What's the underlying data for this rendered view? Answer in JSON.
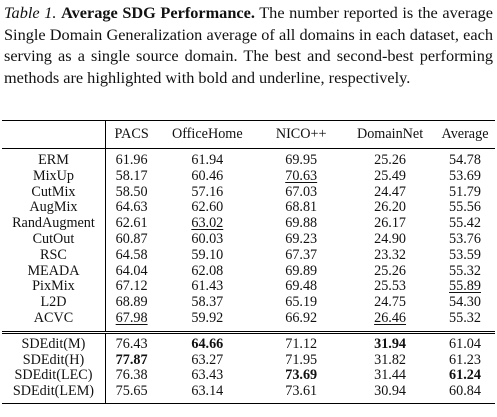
{
  "caption": {
    "label": "Table 1.",
    "title": "Average SDG Performance.",
    "text": "The number reported is the average Single Domain Generalization average of all domains in each dataset, each serving as a single source domain. The best and second-best performing methods are highlighted with bold and underline, respectively."
  },
  "table": {
    "columns": [
      "",
      "PACS",
      "OfficeHome",
      "NICO++",
      "DomainNet",
      "Average"
    ],
    "groups": [
      {
        "id": "baselines",
        "rows": [
          {
            "method": "ERM",
            "cells": [
              {
                "v": "61.96"
              },
              {
                "v": "61.94"
              },
              {
                "v": "69.95"
              },
              {
                "v": "25.26"
              },
              {
                "v": "54.78"
              }
            ]
          },
          {
            "method": "MixUp",
            "cells": [
              {
                "v": "58.17"
              },
              {
                "v": "60.46"
              },
              {
                "v": "70.63",
                "s": "u"
              },
              {
                "v": "25.49"
              },
              {
                "v": "53.69"
              }
            ]
          },
          {
            "method": "CutMix",
            "cells": [
              {
                "v": "58.50"
              },
              {
                "v": "57.16"
              },
              {
                "v": "67.03"
              },
              {
                "v": "24.47"
              },
              {
                "v": "51.79"
              }
            ]
          },
          {
            "method": "AugMix",
            "cells": [
              {
                "v": "64.63"
              },
              {
                "v": "62.60"
              },
              {
                "v": "68.81"
              },
              {
                "v": "26.20"
              },
              {
                "v": "55.56"
              }
            ]
          },
          {
            "method": "RandAugment",
            "cells": [
              {
                "v": "62.61"
              },
              {
                "v": "63.02",
                "s": "u"
              },
              {
                "v": "69.88"
              },
              {
                "v": "26.17"
              },
              {
                "v": "55.42"
              }
            ]
          },
          {
            "method": "CutOut",
            "cells": [
              {
                "v": "60.87"
              },
              {
                "v": "60.03"
              },
              {
                "v": "69.23"
              },
              {
                "v": "24.90"
              },
              {
                "v": "53.76"
              }
            ]
          },
          {
            "method": "RSC",
            "cells": [
              {
                "v": "64.58"
              },
              {
                "v": "59.10"
              },
              {
                "v": "67.37"
              },
              {
                "v": "23.32"
              },
              {
                "v": "53.59"
              }
            ]
          },
          {
            "method": "MEADA",
            "cells": [
              {
                "v": "64.04"
              },
              {
                "v": "62.08"
              },
              {
                "v": "69.89"
              },
              {
                "v": "25.26"
              },
              {
                "v": "55.32"
              }
            ]
          },
          {
            "method": "PixMix",
            "cells": [
              {
                "v": "67.12"
              },
              {
                "v": "61.43"
              },
              {
                "v": "69.48"
              },
              {
                "v": "25.53"
              },
              {
                "v": "55.89",
                "s": "u"
              }
            ]
          },
          {
            "method": "L2D",
            "cells": [
              {
                "v": "68.89"
              },
              {
                "v": "58.37"
              },
              {
                "v": "65.19"
              },
              {
                "v": "24.75"
              },
              {
                "v": "54.30"
              }
            ]
          },
          {
            "method": "ACVC",
            "cells": [
              {
                "v": "67.98",
                "s": "u"
              },
              {
                "v": "59.92"
              },
              {
                "v": "66.92"
              },
              {
                "v": "26.46",
                "s": "u"
              },
              {
                "v": "55.32"
              }
            ]
          }
        ]
      },
      {
        "id": "sdedit",
        "rows": [
          {
            "method": "SDEdit(M)",
            "cells": [
              {
                "v": "76.43"
              },
              {
                "v": "64.66",
                "s": "b"
              },
              {
                "v": "71.12"
              },
              {
                "v": "31.94",
                "s": "b"
              },
              {
                "v": "61.04"
              }
            ]
          },
          {
            "method": "SDEdit(H)",
            "cells": [
              {
                "v": "77.87",
                "s": "b"
              },
              {
                "v": "63.27"
              },
              {
                "v": "71.95"
              },
              {
                "v": "31.82"
              },
              {
                "v": "61.23"
              }
            ]
          },
          {
            "method": "SDEdit(LEC)",
            "cells": [
              {
                "v": "76.38"
              },
              {
                "v": "63.43"
              },
              {
                "v": "73.69",
                "s": "b"
              },
              {
                "v": "31.44"
              },
              {
                "v": "61.24",
                "s": "b"
              }
            ]
          },
          {
            "method": "SDEdit(LEM)",
            "cells": [
              {
                "v": "75.65"
              },
              {
                "v": "63.14"
              },
              {
                "v": "73.61"
              },
              {
                "v": "30.94"
              },
              {
                "v": "60.84"
              }
            ]
          }
        ]
      }
    ]
  }
}
